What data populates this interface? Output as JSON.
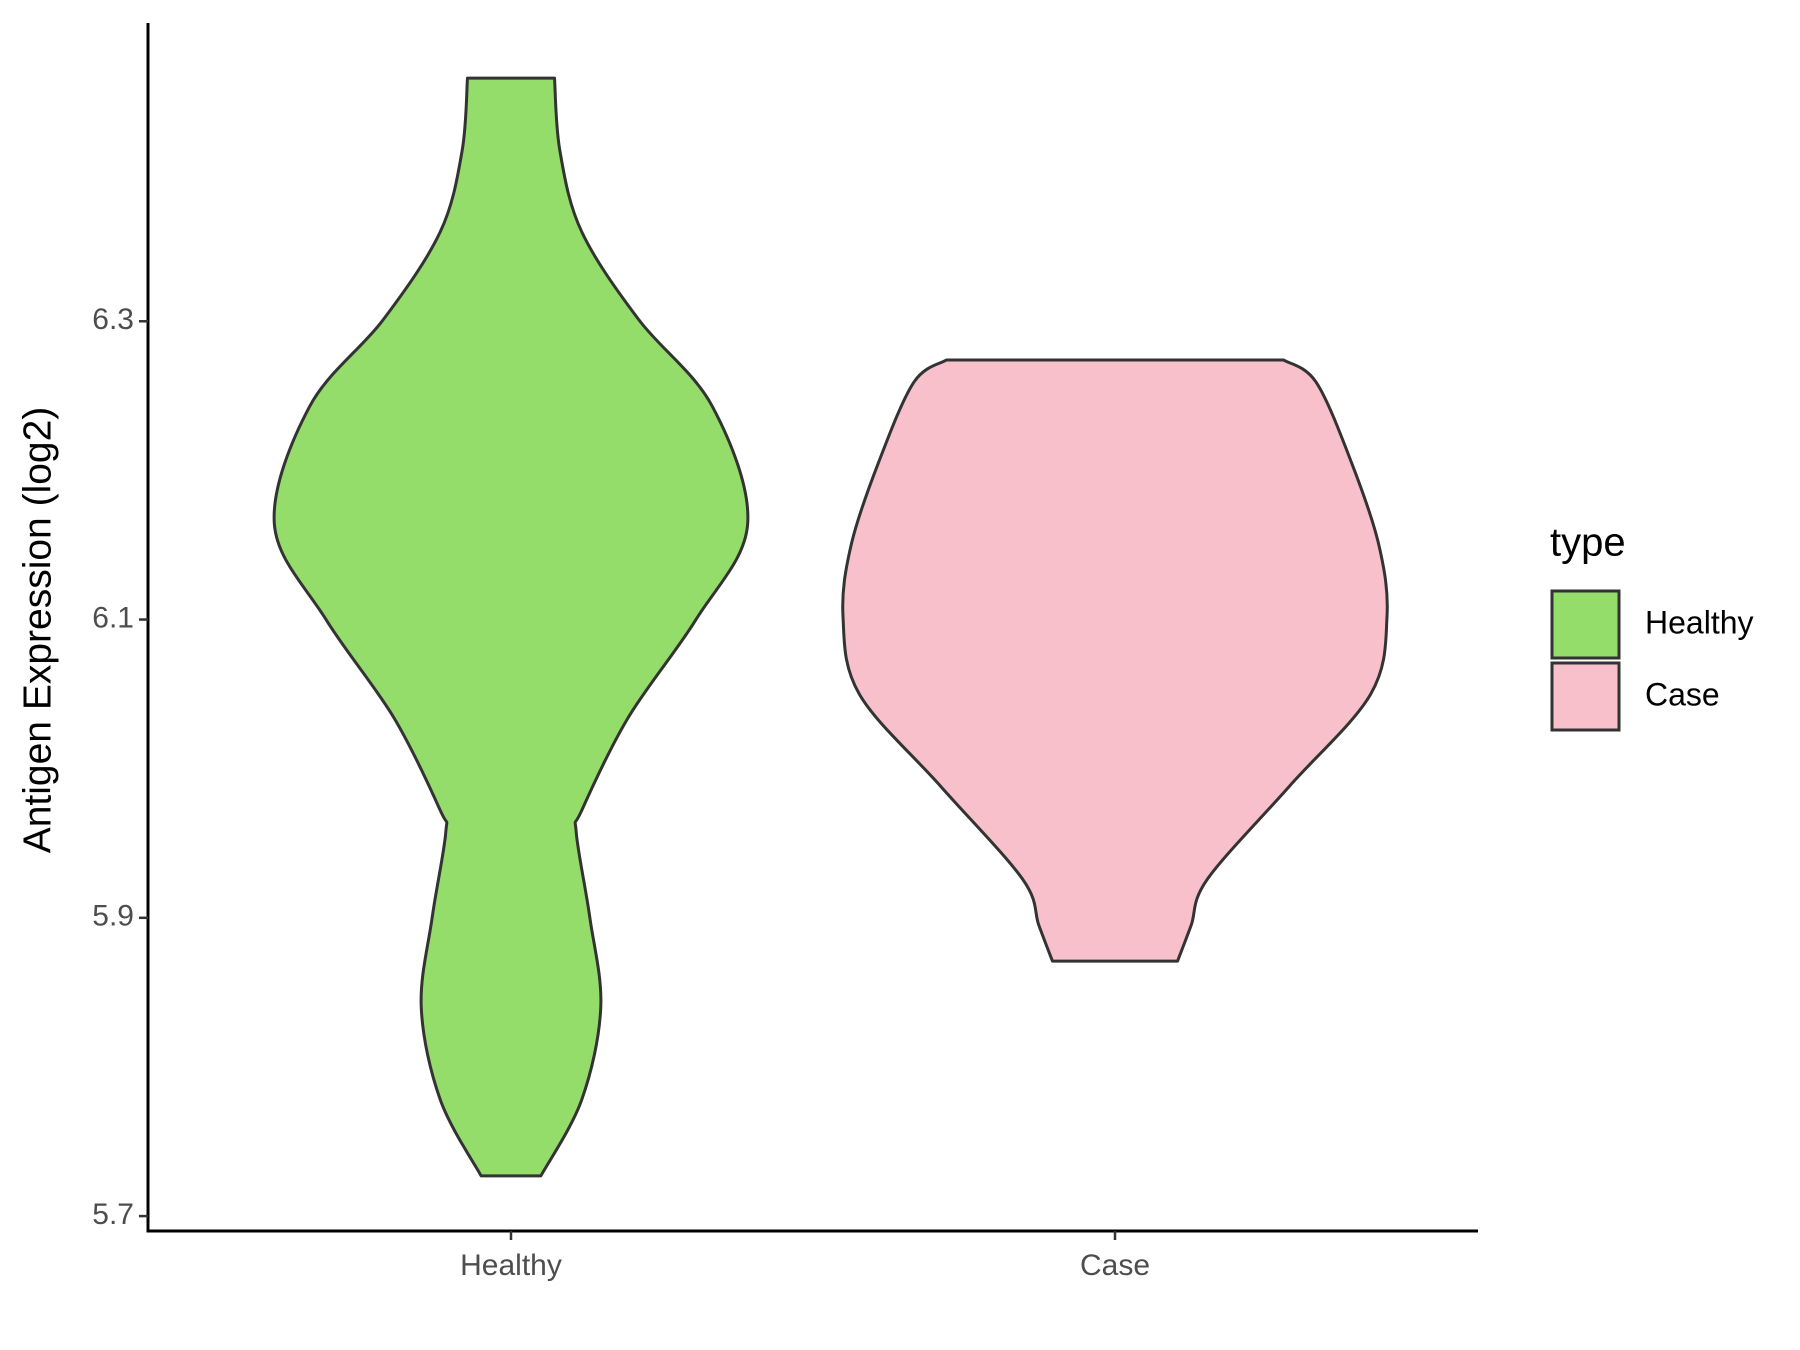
{
  "chart_data": {
    "type": "violin",
    "ylabel": "Antigen Expression (log2)",
    "categories": [
      "Healthy",
      "Case"
    ],
    "legend_title": "type",
    "legend": "right",
    "ylim": [
      5.69,
      6.5
    ],
    "yticks": [
      5.7,
      5.9,
      6.1,
      6.3
    ],
    "series": [
      {
        "name": "Healthy",
        "color": "#95dd6b",
        "y": [
          6.463,
          6.414,
          6.36,
          6.301,
          6.243,
          6.164,
          6.1,
          6.034,
          5.972,
          5.957,
          5.9,
          5.84,
          5.778,
          5.727
        ],
        "density": [
          0.16,
          0.18,
          0.26,
          0.47,
          0.74,
          0.87,
          0.68,
          0.43,
          0.26,
          0.24,
          0.29,
          0.33,
          0.26,
          0.11
        ]
      },
      {
        "name": "Case",
        "color": "#f8c0cb",
        "y": [
          6.274,
          6.259,
          6.205,
          6.15,
          6.102,
          6.05,
          5.988,
          5.926,
          5.895,
          5.871
        ],
        "density": [
          0.62,
          0.74,
          0.87,
          0.97,
          1.0,
          0.94,
          0.64,
          0.34,
          0.28,
          0.23
        ]
      }
    ]
  }
}
